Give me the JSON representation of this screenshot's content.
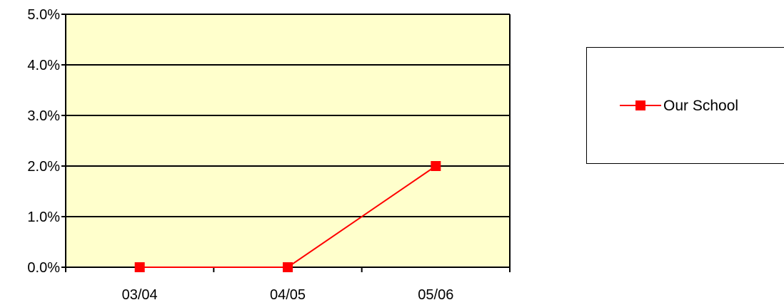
{
  "chart_data": {
    "type": "line",
    "categories": [
      "03/04",
      "04/05",
      "05/06"
    ],
    "series": [
      {
        "name": "Our School",
        "values": [
          0.0,
          0.0,
          2.0
        ],
        "color": "#ff0000",
        "marker": "square"
      }
    ],
    "ylim": [
      0,
      5
    ],
    "yticks": [
      0,
      1,
      2,
      3,
      4,
      5
    ],
    "ytick_labels": [
      "0.0%",
      "1.0%",
      "2.0%",
      "3.0%",
      "4.0%",
      "5.0%"
    ],
    "y_unit": "%",
    "grid": true,
    "plot_background": "#ffffcc",
    "legend_position": "right",
    "title": "",
    "xlabel": "",
    "ylabel": ""
  }
}
